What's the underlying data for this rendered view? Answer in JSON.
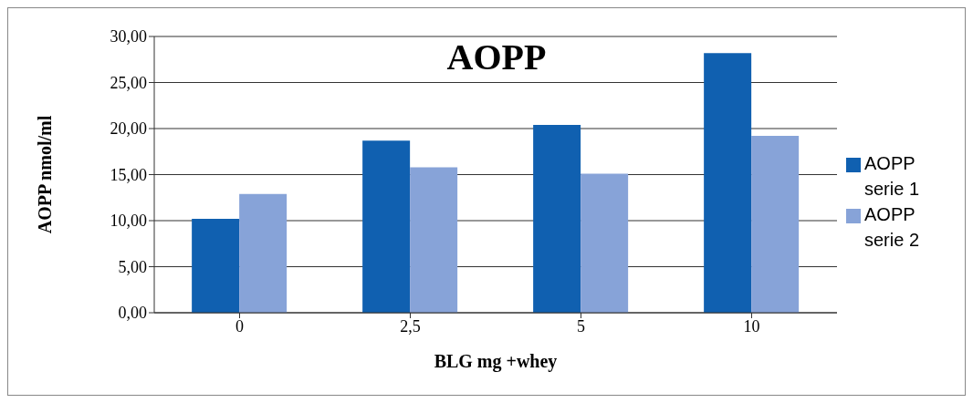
{
  "chart_data": {
    "type": "bar",
    "title": "AOPP",
    "xlabel": "BLG mg +whey",
    "ylabel": "AOPP nmol/ml",
    "categories": [
      "0",
      "2,5",
      "5",
      "10"
    ],
    "series": [
      {
        "name": "AOPP serie 1",
        "color": "#1060b0",
        "values": [
          10.2,
          18.7,
          20.4,
          28.2
        ]
      },
      {
        "name": "AOPP serie 2",
        "color": "#87a3d8",
        "values": [
          12.9,
          15.8,
          15.1,
          19.2
        ]
      }
    ],
    "ylim": [
      0,
      30
    ],
    "yticks": [
      {
        "value": 0,
        "label": "0,00"
      },
      {
        "value": 5,
        "label": "5,00"
      },
      {
        "value": 10,
        "label": "10,00"
      },
      {
        "value": 15,
        "label": "15,00"
      },
      {
        "value": 20,
        "label": "20,00"
      },
      {
        "value": 25,
        "label": "25,00"
      },
      {
        "value": 30,
        "label": "30,00"
      }
    ],
    "grid": "y",
    "legend": "right"
  }
}
